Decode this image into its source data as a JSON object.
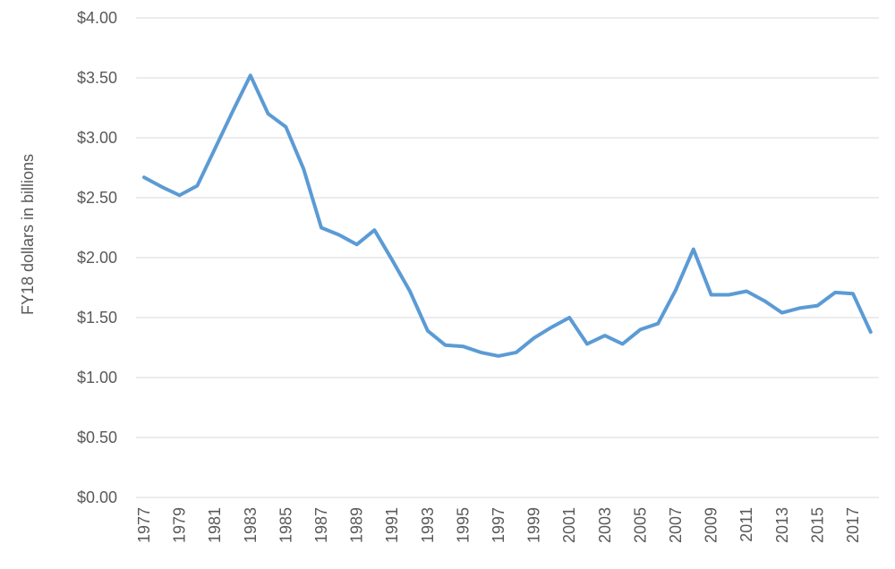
{
  "chart_data": {
    "type": "line",
    "title": "",
    "xlabel": "",
    "ylabel": "FY18 dollars in billions",
    "ylim": [
      0,
      4
    ],
    "y_ticks": [
      "$0.00",
      "$0.50",
      "$1.00",
      "$1.50",
      "$2.00",
      "$2.50",
      "$3.00",
      "$3.50",
      "$4.00"
    ],
    "y_tick_values": [
      0,
      0.5,
      1,
      1.5,
      2,
      2.5,
      3,
      3.5,
      4
    ],
    "x_tick_labels": [
      "1977",
      "1979",
      "1981",
      "1983",
      "1985",
      "1987",
      "1989",
      "1991",
      "1993",
      "1995",
      "1997",
      "1999",
      "2001",
      "2003",
      "2005",
      "2007",
      "2009",
      "2011",
      "2013",
      "2015",
      "2017"
    ],
    "grid": true,
    "legend": "none",
    "x": [
      1977,
      1978,
      1979,
      1980,
      1981,
      1982,
      1983,
      1984,
      1985,
      1986,
      1987,
      1988,
      1989,
      1990,
      1991,
      1992,
      1993,
      1994,
      1995,
      1996,
      1997,
      1998,
      1999,
      2000,
      2001,
      2002,
      2003,
      2004,
      2005,
      2006,
      2007,
      2008,
      2009,
      2010,
      2011,
      2012,
      2013,
      2014,
      2015,
      2016,
      2017,
      2018
    ],
    "series": [
      {
        "color": "#5b9bd5",
        "values": [
          2.67,
          2.59,
          2.52,
          2.6,
          2.91,
          3.22,
          3.52,
          3.2,
          3.09,
          2.74,
          2.25,
          2.19,
          2.11,
          2.23,
          1.98,
          1.72,
          1.39,
          1.27,
          1.26,
          1.21,
          1.18,
          1.21,
          1.33,
          1.42,
          1.5,
          1.28,
          1.35,
          1.28,
          1.4,
          1.45,
          1.73,
          2.07,
          1.69,
          1.69,
          1.72,
          1.64,
          1.54,
          1.58,
          1.6,
          1.71,
          1.7,
          1.38
        ]
      }
    ]
  }
}
